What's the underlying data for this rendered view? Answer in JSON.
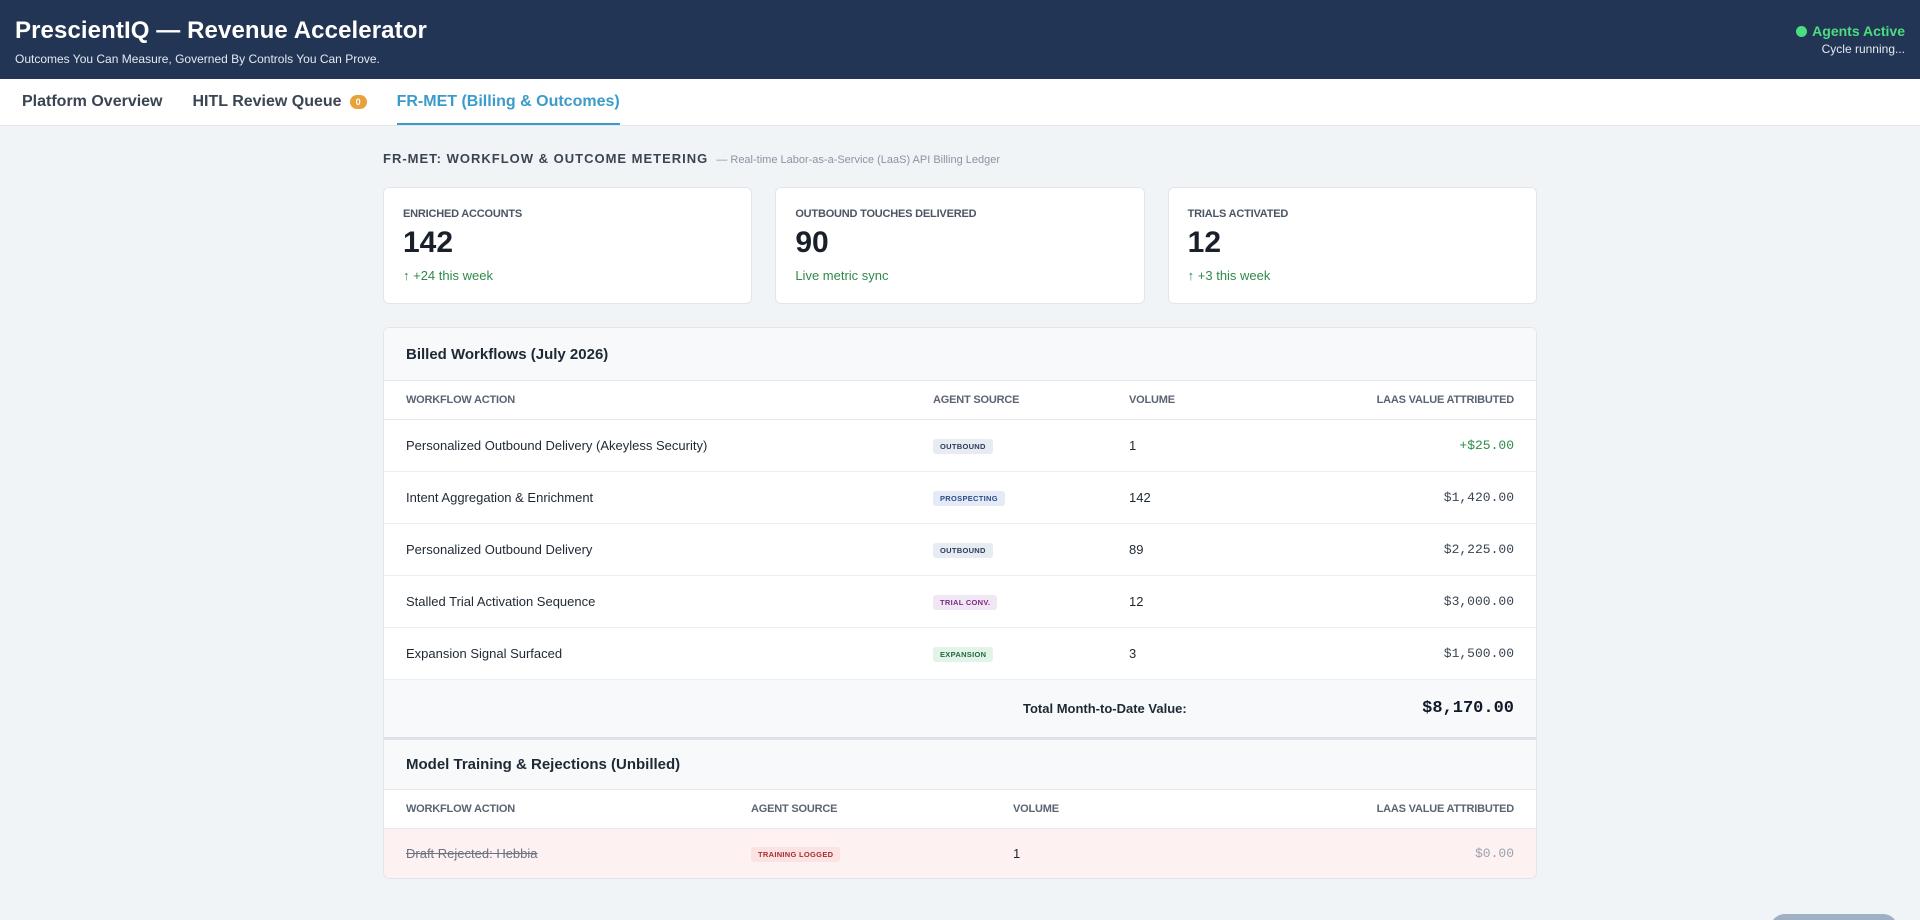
{
  "header": {
    "title": "PrescientIQ — Revenue Accelerator",
    "subtitle": "Outcomes You Can Measure, Governed By Controls You Can Prove.",
    "status_label": "Agents Active",
    "status_sub": "Cycle running..."
  },
  "tabs": [
    {
      "label": "Platform Overview"
    },
    {
      "label": "HITL Review Queue",
      "badge": "0"
    },
    {
      "label": "FR-MET (Billing & Outcomes)",
      "active": true
    }
  ],
  "section": {
    "title": "FR-MET: WORKFLOW & OUTCOME METERING",
    "subtitle": "— Real-time Labor-as-a-Service (LaaS) API Billing Ledger"
  },
  "kpis": [
    {
      "label": "ENRICHED ACCOUNTS",
      "value": "142",
      "delta": "↑ +24 this week"
    },
    {
      "label": "OUTBOUND TOUCHES DELIVERED",
      "value": "90",
      "delta": "Live metric sync"
    },
    {
      "label": "TRIALS ACTIVATED",
      "value": "12",
      "delta": "↑ +3 this week"
    }
  ],
  "billed": {
    "title": "Billed Workflows (July 2026)",
    "columns": [
      "WORKFLOW ACTION",
      "AGENT SOURCE",
      "VOLUME",
      "LAAS VALUE ATTRIBUTED"
    ],
    "rows": [
      {
        "action": "Personalized Outbound Delivery (Akeyless Security)",
        "source": "OUTBOUND",
        "volume": "1",
        "value": "+$25.00"
      },
      {
        "action": "Intent Aggregation & Enrichment",
        "source": "PROSPECTING",
        "volume": "142",
        "value": "$1,420.00"
      },
      {
        "action": "Personalized Outbound Delivery",
        "source": "OUTBOUND",
        "volume": "89",
        "value": "$2,225.00"
      },
      {
        "action": "Stalled Trial Activation Sequence",
        "source": "TRIAL CONV.",
        "volume": "12",
        "value": "$3,000.00"
      },
      {
        "action": "Expansion Signal Surfaced",
        "source": "EXPANSION",
        "volume": "3",
        "value": "$1,500.00"
      }
    ],
    "total_label": "Total Month-to-Date Value:",
    "total_value": "$8,170.00"
  },
  "unbilled": {
    "title": "Model Training & Rejections (Unbilled)",
    "columns": [
      "WORKFLOW ACTION",
      "AGENT SOURCE",
      "VOLUME",
      "LAAS VALUE ATTRIBUTED"
    ],
    "rows": [
      {
        "action": "Draft Rejected: Hebbia",
        "source": "TRAINING LOGGED",
        "volume": "1",
        "value": "$0.00"
      }
    ]
  }
}
